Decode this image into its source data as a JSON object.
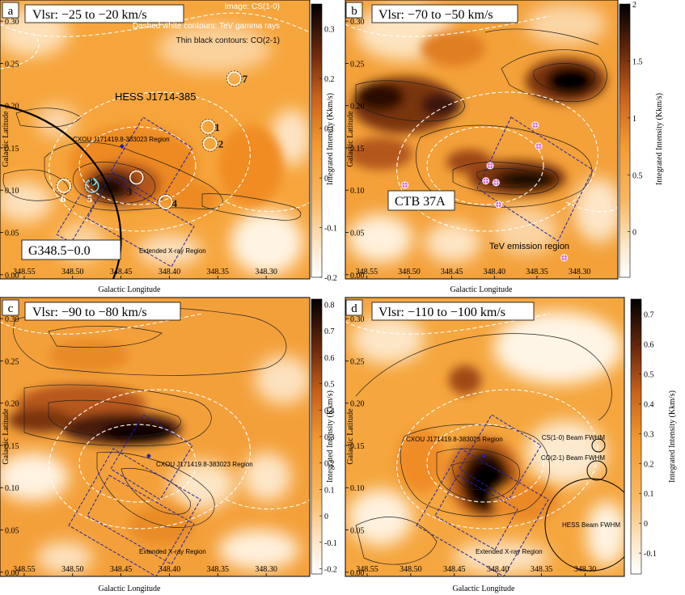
{
  "figure": {
    "x_axis_label": "Galactic Longitude",
    "y_axis_label": "Galactic Latitude",
    "colorbar_label": "Integrated Intensity (Kkm/s)"
  },
  "colors": {
    "background_orange": "#f5a43a",
    "emission_dark": "#0a0502",
    "tev_contours": "#ffffff",
    "co_contours": "#1a1a1a",
    "xray_region": "#1e22aa"
  },
  "chart_data": [
    {
      "type": "heatmap",
      "panel_label": "a",
      "title": "Vlsr: −25 to −20 km/s",
      "xlabel": "Galactic Longitude",
      "ylabel": "Galactic Latitude",
      "colorbar_label": "Integrated Intensity (Kkm/s)",
      "xlim": [
        348.575,
        348.255
      ],
      "ylim": [
        -0.005,
        0.325
      ],
      "x_ticks": [
        "348.55",
        "348.50",
        "348.45",
        "348.40",
        "348.35",
        "348.30"
      ],
      "y_ticks": [
        "0.00",
        "0.05",
        "0.10",
        "0.15",
        "0.20",
        "0.25",
        "0.30"
      ],
      "colorbar_range": [
        -0.2,
        0.35
      ],
      "colorbar_ticks": [
        "0.3",
        "0.2",
        "0.1",
        "0",
        "-0.1",
        "-0.2"
      ],
      "legend_lines": [
        "Image: CS(1-0)",
        "Dashed white contours: TeV gamma rays",
        "Thin black contours: CO(2-1)"
      ],
      "annotations": [
        "HESS J1714-385",
        "CXOU J171419.8-383023 Region",
        "Extended X-ray Region",
        "G348.5−0.0"
      ],
      "source_markers": [
        {
          "label": "1",
          "l": 348.36,
          "b": 0.175
        },
        {
          "label": "2",
          "l": 348.358,
          "b": 0.155
        },
        {
          "label": "3",
          "l": 348.434,
          "b": 0.115
        },
        {
          "label": "4",
          "l": 348.404,
          "b": 0.086
        },
        {
          "label": "5",
          "l": 348.48,
          "b": 0.105
        },
        {
          "label": "6",
          "l": 348.509,
          "b": 0.105
        },
        {
          "label": "7",
          "l": 348.333,
          "b": 0.232
        },
        {
          "label": "8",
          "l": 348.479,
          "b": 0.11
        }
      ]
    },
    {
      "type": "heatmap",
      "panel_label": "b",
      "title": "Vlsr: −70 to −50 km/s",
      "xlabel": "Galactic Longitude",
      "ylabel": "Galactic Latitude",
      "colorbar_label": "Integrated Intensity (Kkm/s)",
      "xlim": [
        348.575,
        348.255
      ],
      "ylim": [
        -0.005,
        0.325
      ],
      "x_ticks": [
        "348.55",
        "348.50",
        "348.45",
        "348.40",
        "348.35",
        "348.30"
      ],
      "y_ticks": [
        "0.00",
        "0.05",
        "0.10",
        "0.15",
        "0.20",
        "0.25",
        "0.30"
      ],
      "colorbar_range": [
        -0.4,
        2.0
      ],
      "colorbar_ticks": [
        "2",
        "1.5",
        "1",
        "0.5",
        "0"
      ],
      "annotations": [
        "CTB 37A",
        "TeV emission region"
      ],
      "maser_markers": [
        {
          "l": 348.352,
          "b": 0.177
        },
        {
          "l": 348.348,
          "b": 0.152
        },
        {
          "l": 348.405,
          "b": 0.129
        },
        {
          "l": 348.41,
          "b": 0.111
        },
        {
          "l": 348.398,
          "b": 0.109
        },
        {
          "l": 348.395,
          "b": 0.083
        },
        {
          "l": 348.505,
          "b": 0.106
        },
        {
          "l": 348.318,
          "b": 0.02
        }
      ]
    },
    {
      "type": "heatmap",
      "panel_label": "c",
      "title": "Vlsr: −90 to −80 km/s",
      "xlabel": "Galactic Longitude",
      "ylabel": "Galactic Latitude",
      "colorbar_label": "Integrated Intensity (Kkm/s)",
      "xlim": [
        348.575,
        348.255
      ],
      "ylim": [
        -0.005,
        0.325
      ],
      "x_ticks": [
        "348.55",
        "348.50",
        "348.45",
        "348.40",
        "348.35",
        "348.30"
      ],
      "y_ticks": [
        "0.00",
        "0.05",
        "0.10",
        "0.15",
        "0.20",
        "0.25",
        "0.30"
      ],
      "colorbar_range": [
        -0.22,
        0.82
      ],
      "colorbar_ticks": [
        "0.8",
        "0.7",
        "0.6",
        "0.5",
        "0.4",
        "0.3",
        "0.2",
        "0.1",
        "0",
        "-0.1",
        "-0.2"
      ],
      "annotations": [
        "CXOU J171419.8-383023 Region",
        "Extended X-ray Region"
      ]
    },
    {
      "type": "heatmap",
      "panel_label": "d",
      "title": "Vlsr: −110 to −100 km/s",
      "xlabel": "Galactic Longitude",
      "ylabel": "Galactic Latitude",
      "colorbar_label": "Integrated Intensity (Kkm/s)",
      "xlim": [
        348.575,
        348.255
      ],
      "ylim": [
        -0.005,
        0.325
      ],
      "x_ticks": [
        "348.55",
        "348.50",
        "348.45",
        "348.40",
        "348.35",
        "348.30"
      ],
      "y_ticks": [
        "0.00",
        "0.05",
        "0.10",
        "0.15",
        "0.20",
        "0.25",
        "0.30"
      ],
      "colorbar_range": [
        -0.17,
        0.75
      ],
      "colorbar_ticks": [
        "0.7",
        "0.6",
        "0.5",
        "0.4",
        "0.3",
        "0.2",
        "0.1",
        "0",
        "-0.1"
      ],
      "annotations": [
        "CXOU J171419.8-383023 Region",
        "Extended X-ray Region",
        "CS(1-0) Beam FWHM",
        "CO(2-1) Beam FWHM",
        "HESS Beam FWHM"
      ]
    }
  ]
}
